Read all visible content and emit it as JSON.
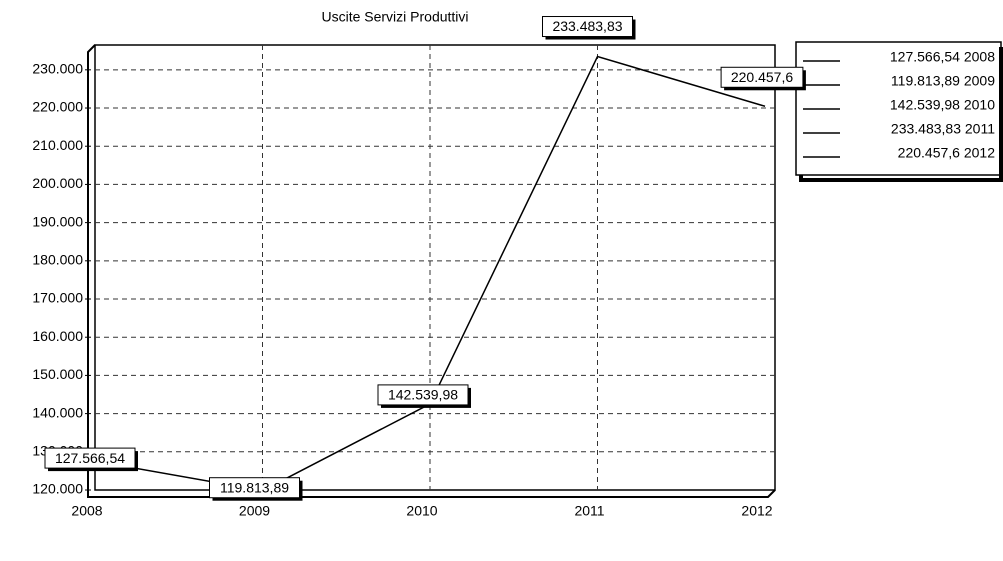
{
  "chart_data": {
    "type": "line",
    "title": "Uscite Servizi Produttivi",
    "categories": [
      "2008",
      "2009",
      "2010",
      "2011",
      "2012"
    ],
    "values": [
      127566.54,
      119813.89,
      142539.98,
      233483.83,
      220457.6
    ],
    "value_labels": [
      "127.566,54",
      "119.813,89",
      "142.539,98",
      "233.483,83",
      "220.457,6"
    ],
    "color": "#000000",
    "ylim": [
      120000,
      236500
    ],
    "yticks": [
      {
        "value": 120000,
        "label": "120.000"
      },
      {
        "value": 130000,
        "label": "130.000"
      },
      {
        "value": 140000,
        "label": "140.000"
      },
      {
        "value": 150000,
        "label": "150.000"
      },
      {
        "value": 160000,
        "label": "160.000"
      },
      {
        "value": 170000,
        "label": "170.000"
      },
      {
        "value": 180000,
        "label": "180.000"
      },
      {
        "value": 190000,
        "label": "190.000"
      },
      {
        "value": 200000,
        "label": "200.000"
      },
      {
        "value": 210000,
        "label": "210.000"
      },
      {
        "value": 220000,
        "label": "220.000"
      },
      {
        "value": 230000,
        "label": "230.000"
      }
    ],
    "grid": true,
    "legend": [
      "127.566,54 2008",
      "119.813,89 2009",
      "142.539,98 2010",
      "233.483,83 2011",
      "220.457,6 2012"
    ]
  }
}
